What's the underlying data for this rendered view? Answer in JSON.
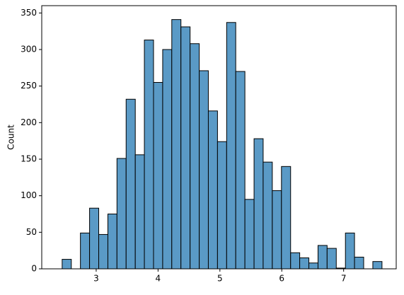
{
  "chart_data": {
    "type": "histogram",
    "ylabel": "Count",
    "bins": [
      2.45,
      2.598,
      2.745,
      2.893,
      3.041,
      3.189,
      3.336,
      3.484,
      3.632,
      3.779,
      3.927,
      4.075,
      4.222,
      4.37,
      4.518,
      4.666,
      4.813,
      4.961,
      5.109,
      5.256,
      5.404,
      5.552,
      5.699,
      5.847,
      5.995,
      6.143,
      6.29,
      6.438,
      6.586,
      6.733,
      6.881,
      7.029,
      7.176,
      7.324,
      7.472,
      7.62
    ],
    "values": [
      13,
      0,
      49,
      83,
      47,
      75,
      151,
      232,
      156,
      313,
      255,
      300,
      341,
      331,
      308,
      271,
      216,
      174,
      337,
      270,
      95,
      178,
      146,
      107,
      140,
      22,
      15,
      8,
      32,
      28,
      1,
      49,
      16,
      0,
      10
    ],
    "color": "#5a9ac6",
    "xlim": [
      2.12,
      7.85
    ],
    "xticks": [
      3,
      4,
      5,
      6,
      7
    ],
    "ylim": [
      0,
      360
    ],
    "yticks": [
      0,
      50,
      100,
      150,
      200,
      250,
      300,
      350
    ]
  }
}
